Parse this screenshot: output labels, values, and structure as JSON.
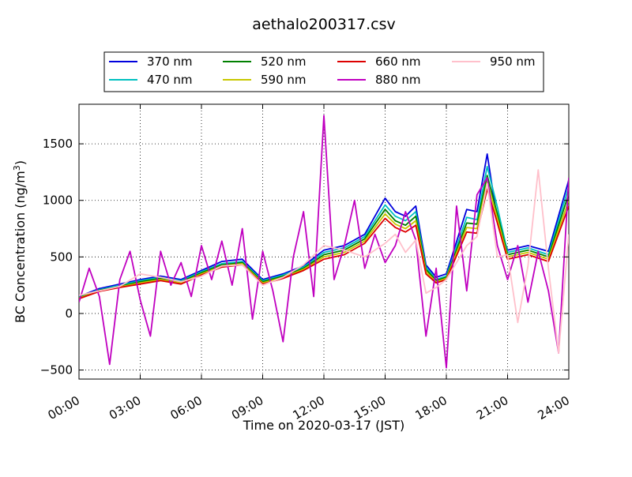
{
  "chart_data": {
    "type": "line",
    "title": "aethalo200317.csv",
    "xlabel": "Time on 2020-03-17 (JST)",
    "ylabel": "BC Concentration (ng/m",
    "ylabel_sup": "3",
    "ylabel_close": ")",
    "xlim": [
      "00:00",
      "24:00"
    ],
    "ylim": [
      -580,
      1850
    ],
    "x_ticks": [
      "00:00",
      "03:00",
      "06:00",
      "09:00",
      "12:00",
      "15:00",
      "18:00",
      "21:00",
      "24:00"
    ],
    "y_ticks": [
      -500,
      0,
      500,
      1000,
      1500
    ],
    "grid": true,
    "legend_position": "top",
    "series": [
      {
        "name": "370 nm",
        "color": "#0000dd",
        "x": [
          "00:00",
          "01:00",
          "02:00",
          "03:00",
          "04:00",
          "05:00",
          "06:00",
          "07:00",
          "08:00",
          "09:00",
          "10:00",
          "11:00",
          "12:00",
          "13:00",
          "14:00",
          "15:00",
          "15:30",
          "16:00",
          "16:30",
          "17:00",
          "17:30",
          "18:00",
          "19:00",
          "19:30",
          "20:00",
          "20:30",
          "21:00",
          "22:00",
          "23:00",
          "24:00"
        ],
        "values": [
          150,
          220,
          260,
          300,
          330,
          300,
          380,
          460,
          480,
          300,
          350,
          420,
          560,
          600,
          700,
          1020,
          900,
          860,
          950,
          430,
          320,
          350,
          920,
          900,
          1410,
          820,
          560,
          600,
          550,
          1180
        ]
      },
      {
        "name": "470 nm",
        "color": "#00c0c0",
        "x": [
          "00:00",
          "01:00",
          "02:00",
          "03:00",
          "04:00",
          "05:00",
          "06:00",
          "07:00",
          "08:00",
          "09:00",
          "10:00",
          "11:00",
          "12:00",
          "13:00",
          "14:00",
          "15:00",
          "15:30",
          "16:00",
          "16:30",
          "17:00",
          "17:30",
          "18:00",
          "19:00",
          "19:30",
          "20:00",
          "20:30",
          "21:00",
          "22:00",
          "23:00",
          "24:00"
        ],
        "values": [
          145,
          210,
          250,
          290,
          320,
          290,
          370,
          440,
          460,
          290,
          340,
          410,
          540,
          580,
          680,
          960,
          860,
          820,
          900,
          410,
          300,
          330,
          850,
          830,
          1300,
          940,
          540,
          580,
          520,
          1120
        ]
      },
      {
        "name": "520 nm",
        "color": "#008000",
        "x": [
          "00:00",
          "01:00",
          "02:00",
          "03:00",
          "04:00",
          "05:00",
          "06:00",
          "07:00",
          "08:00",
          "09:00",
          "10:00",
          "11:00",
          "12:00",
          "13:00",
          "14:00",
          "15:00",
          "15:30",
          "16:00",
          "16:30",
          "17:00",
          "17:30",
          "18:00",
          "19:00",
          "19:30",
          "20:00",
          "20:30",
          "21:00",
          "22:00",
          "23:00",
          "24:00"
        ],
        "values": [
          140,
          205,
          240,
          280,
          310,
          280,
          360,
          430,
          450,
          280,
          330,
          400,
          520,
          560,
          660,
          920,
          820,
          780,
          860,
          390,
          290,
          320,
          800,
          790,
          1220,
          880,
          520,
          560,
          500,
          1060
        ]
      },
      {
        "name": "590 nm",
        "color": "#c8c800",
        "x": [
          "00:00",
          "01:00",
          "02:00",
          "03:00",
          "04:00",
          "05:00",
          "06:00",
          "07:00",
          "08:00",
          "09:00",
          "10:00",
          "11:00",
          "12:00",
          "13:00",
          "14:00",
          "15:00",
          "15:30",
          "16:00",
          "16:30",
          "17:00",
          "17:30",
          "18:00",
          "19:00",
          "19:30",
          "20:00",
          "20:30",
          "21:00",
          "22:00",
          "23:00",
          "24:00"
        ],
        "values": [
          135,
          200,
          235,
          270,
          300,
          270,
          350,
          420,
          440,
          270,
          320,
          390,
          500,
          540,
          640,
          880,
          790,
          750,
          820,
          370,
          280,
          310,
          760,
          750,
          1160,
          840,
          500,
          540,
          480,
          1000
        ]
      },
      {
        "name": "660 nm",
        "color": "#dd0000",
        "x": [
          "00:00",
          "01:00",
          "02:00",
          "03:00",
          "04:00",
          "05:00",
          "06:00",
          "07:00",
          "08:00",
          "09:00",
          "10:00",
          "11:00",
          "12:00",
          "13:00",
          "14:00",
          "15:00",
          "15:30",
          "16:00",
          "16:30",
          "17:00",
          "17:30",
          "18:00",
          "19:00",
          "19:30",
          "20:00",
          "20:30",
          "21:00",
          "22:00",
          "23:00",
          "24:00"
        ],
        "values": [
          130,
          195,
          230,
          260,
          290,
          260,
          340,
          410,
          430,
          260,
          310,
          380,
          480,
          520,
          620,
          840,
          760,
          720,
          780,
          350,
          270,
          300,
          720,
          710,
          1100,
          800,
          480,
          520,
          460,
          950
        ]
      },
      {
        "name": "880 nm",
        "color": "#c000c0",
        "x": [
          "00:00",
          "00:30",
          "01:00",
          "01:30",
          "02:00",
          "02:30",
          "03:00",
          "03:30",
          "04:00",
          "04:30",
          "05:00",
          "05:30",
          "06:00",
          "06:30",
          "07:00",
          "07:30",
          "08:00",
          "08:30",
          "09:00",
          "09:30",
          "10:00",
          "10:30",
          "11:00",
          "11:30",
          "12:00",
          "12:30",
          "13:00",
          "13:30",
          "14:00",
          "14:30",
          "15:00",
          "15:30",
          "16:00",
          "16:30",
          "17:00",
          "17:30",
          "18:00",
          "18:30",
          "19:00",
          "19:30",
          "20:00",
          "20:30",
          "21:00",
          "21:30",
          "22:00",
          "22:30",
          "23:00",
          "23:30",
          "24:00"
        ],
        "values": [
          100,
          400,
          150,
          -450,
          300,
          550,
          120,
          -200,
          550,
          250,
          450,
          150,
          600,
          300,
          640,
          250,
          750,
          -50,
          550,
          200,
          -250,
          500,
          900,
          150,
          1750,
          300,
          600,
          1000,
          400,
          700,
          450,
          600,
          900,
          650,
          -200,
          400,
          -480,
          950,
          200,
          1050,
          1200,
          600,
          300,
          600,
          100,
          550,
          200,
          -350,
          1200
        ]
      },
      {
        "name": "950 nm",
        "color": "#ffc0cb",
        "x": [
          "00:00",
          "01:00",
          "02:00",
          "03:00",
          "04:00",
          "05:00",
          "06:00",
          "07:00",
          "08:00",
          "09:00",
          "10:00",
          "11:00",
          "12:00",
          "13:00",
          "14:00",
          "15:00",
          "15:30",
          "16:00",
          "16:30",
          "17:00",
          "17:30",
          "18:00",
          "19:00",
          "19:30",
          "20:00",
          "20:30",
          "21:00",
          "21:30",
          "22:00",
          "22:30",
          "23:00",
          "23:30",
          "24:00"
        ],
        "values": [
          160,
          200,
          240,
          350,
          320,
          280,
          330,
          420,
          430,
          250,
          320,
          430,
          600,
          560,
          500,
          620,
          700,
          540,
          650,
          180,
          230,
          300,
          600,
          680,
          1150,
          500,
          520,
          -80,
          420,
          1270,
          400,
          -350,
          700
        ]
      }
    ]
  }
}
